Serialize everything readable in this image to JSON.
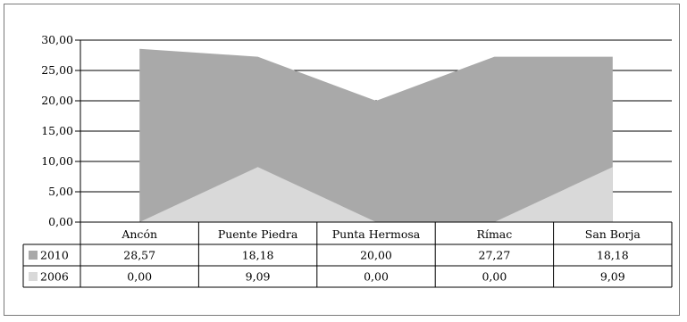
{
  "chart_data": {
    "type": "area",
    "stacked": true,
    "categories": [
      "Ancón",
      "Puente Piedra",
      "Punta Hermosa",
      "Rímac",
      "San Borja"
    ],
    "series": [
      {
        "name": "2010",
        "values": [
          28.57,
          18.18,
          20.0,
          27.27,
          18.18
        ],
        "value_labels": [
          "28,57",
          "18,18",
          "20,00",
          "27,27",
          "18,18"
        ],
        "color": "#a9a9a9"
      },
      {
        "name": "2006",
        "values": [
          0.0,
          9.09,
          0.0,
          0.0,
          9.09
        ],
        "value_labels": [
          "0,00",
          "9,09",
          "0,00",
          "0,00",
          "9,09"
        ],
        "color": "#d9d9d9"
      }
    ],
    "y_ticks": [
      "0,00",
      "5,00",
      "10,00",
      "15,00",
      "20,00",
      "25,00",
      "30,00"
    ],
    "ylim": [
      0,
      30
    ],
    "grid": true,
    "legend": "data-table-left",
    "title": "",
    "xlabel": "",
    "ylabel": ""
  }
}
